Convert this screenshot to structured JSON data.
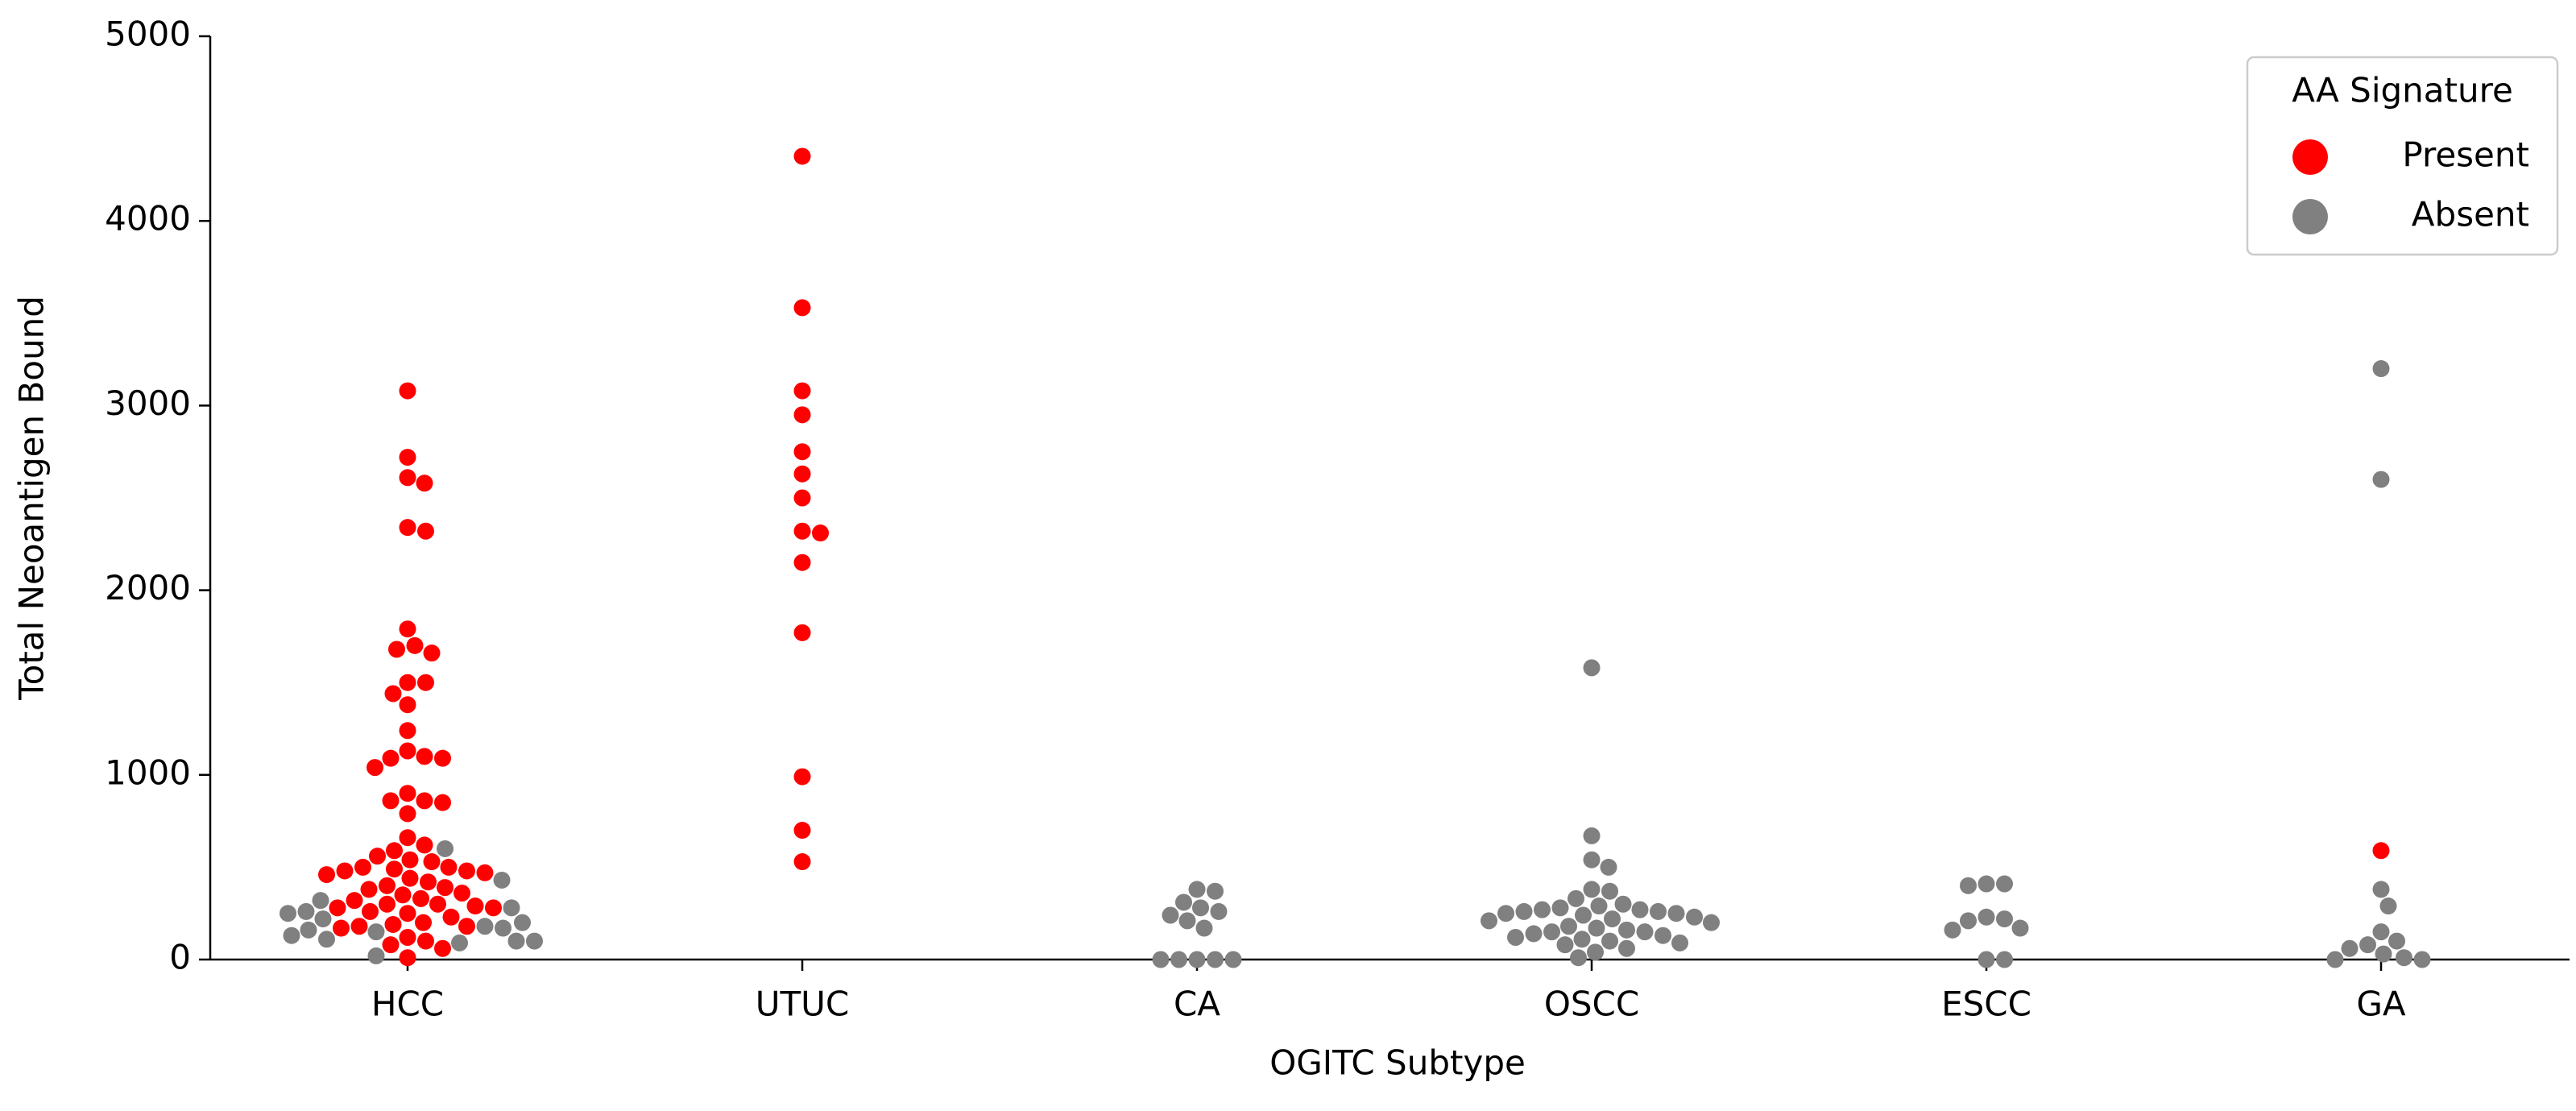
{
  "chart_data": {
    "type": "swarm",
    "xlabel": "OGITC Subtype",
    "ylabel": "Total Neoantigen Bound",
    "categories": [
      "HCC",
      "UTUC",
      "CA",
      "OSCC",
      "ESCC",
      "GA"
    ],
    "ylim": [
      0,
      5000
    ],
    "yticks": [
      0,
      1000,
      2000,
      3000,
      4000,
      5000
    ],
    "legend_title": "AA Signature",
    "legend": "upper right",
    "series": [
      {
        "name": "Present",
        "color": "#ff0000",
        "values": [
          [
            3080,
            2720,
            2610,
            2580,
            2340,
            2320,
            1790,
            1700,
            1680,
            1660,
            1500,
            1500,
            1440,
            1380,
            1240,
            1130,
            1100,
            1090,
            1090,
            1040,
            900,
            860,
            860,
            850,
            790,
            660,
            620,
            590,
            560,
            540,
            530,
            500,
            500,
            490,
            480,
            480,
            470,
            460,
            440,
            420,
            400,
            390,
            380,
            360,
            350,
            330,
            320,
            300,
            300,
            290,
            280,
            280,
            260,
            250,
            230,
            200,
            190,
            180,
            180,
            170,
            120,
            100,
            80,
            60,
            10
          ],
          [
            4350,
            3530,
            3080,
            2950,
            2750,
            2630,
            2500,
            2320,
            2310,
            2150,
            1770,
            990,
            700,
            530
          ],
          [],
          [],
          [],
          [
            590
          ]
        ]
      },
      {
        "name": "Absent",
        "color": "#808080",
        "values": [
          [
            600,
            430,
            320,
            280,
            260,
            250,
            220,
            200,
            180,
            170,
            160,
            150,
            130,
            110,
            100,
            100,
            90,
            20
          ],
          [],
          [
            380,
            370,
            310,
            280,
            260,
            240,
            210,
            170,
            0,
            0,
            0,
            0,
            0
          ],
          [
            1580,
            670,
            540,
            500,
            380,
            370,
            330,
            300,
            290,
            280,
            270,
            270,
            260,
            260,
            250,
            250,
            240,
            230,
            220,
            210,
            200,
            180,
            170,
            160,
            150,
            150,
            140,
            130,
            120,
            110,
            100,
            90,
            80,
            60,
            40,
            10
          ],
          [
            410,
            410,
            400,
            230,
            220,
            210,
            170,
            160,
            0,
            0
          ],
          [
            3200,
            2600,
            380,
            290,
            150,
            100,
            80,
            60,
            30,
            10,
            0,
            0
          ]
        ]
      }
    ]
  }
}
